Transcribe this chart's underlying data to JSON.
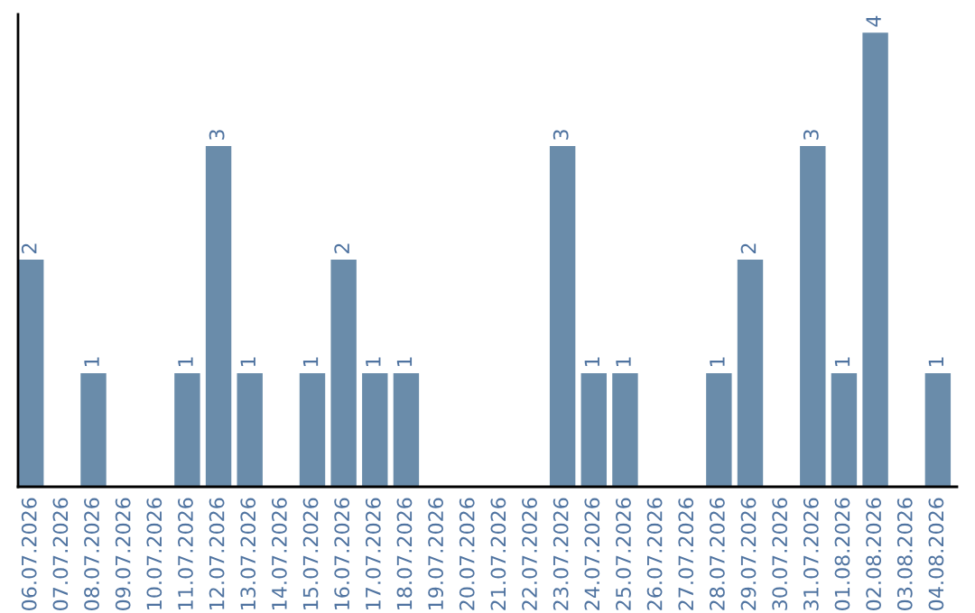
{
  "chart_data": {
    "type": "bar",
    "categories": [
      "06.07.2026",
      "07.07.2026",
      "08.07.2026",
      "09.07.2026",
      "10.07.2026",
      "11.07.2026",
      "12.07.2026",
      "13.07.2026",
      "14.07.2026",
      "15.07.2026",
      "16.07.2026",
      "17.07.2026",
      "18.07.2026",
      "19.07.2026",
      "20.07.2026",
      "21.07.2026",
      "22.07.2026",
      "23.07.2026",
      "24.07.2026",
      "25.07.2026",
      "26.07.2026",
      "27.07.2026",
      "28.07.2026",
      "29.07.2026",
      "30.07.2026",
      "31.07.2026",
      "01.08.2026",
      "02.08.2026",
      "03.08.2026",
      "04.08.2026"
    ],
    "values": [
      2,
      0,
      1,
      0,
      0,
      1,
      3,
      1,
      0,
      1,
      2,
      1,
      1,
      0,
      0,
      0,
      0,
      3,
      1,
      1,
      0,
      0,
      1,
      2,
      0,
      3,
      1,
      4,
      0,
      1
    ],
    "value_labels": [
      "2",
      null,
      "1",
      null,
      null,
      "1",
      "3",
      "1",
      null,
      "1",
      "2",
      "1",
      "1",
      null,
      null,
      null,
      null,
      "3",
      "1",
      "1",
      null,
      null,
      "1",
      "2",
      null,
      "3",
      "1",
      "4",
      null,
      "1"
    ],
    "color": "#6a8caa",
    "grid": false,
    "legend": false,
    "tick_labels": "x"
  }
}
